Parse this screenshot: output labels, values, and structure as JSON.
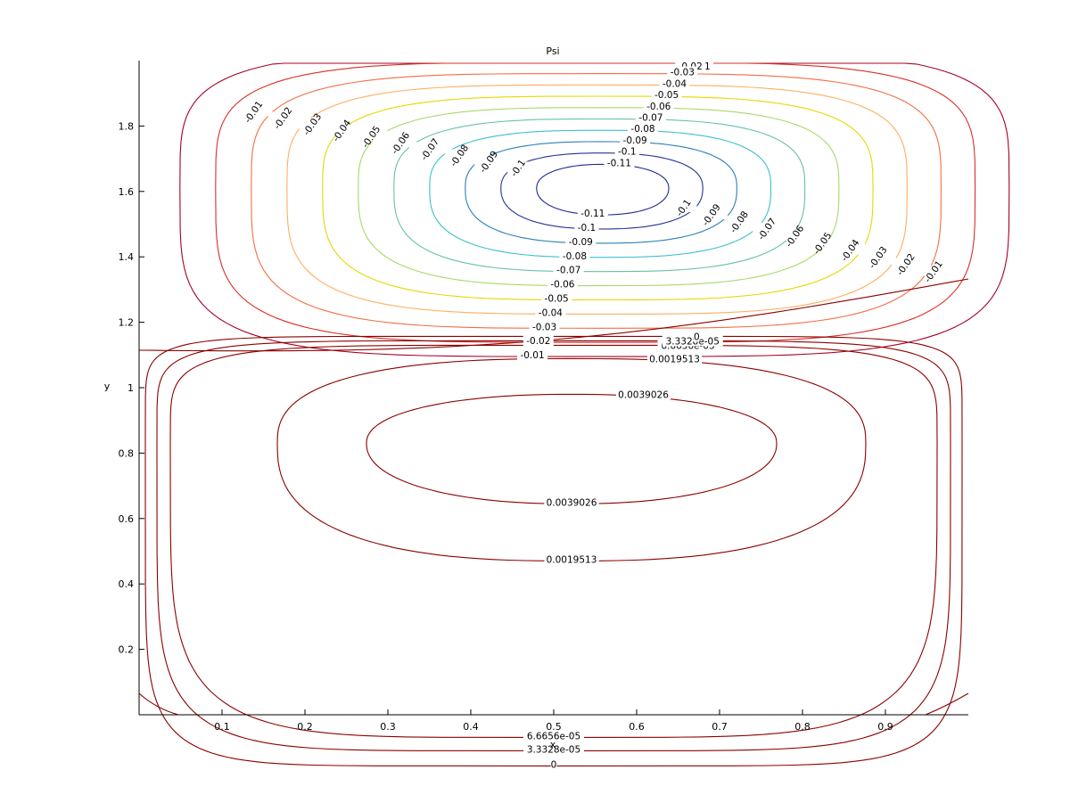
{
  "chart_data": {
    "type": "contour",
    "title": "Psi",
    "xlabel": "x",
    "ylabel": "y",
    "xlim": [
      0.0,
      1.0
    ],
    "ylim": [
      0.0,
      2.0
    ],
    "x_ticks": [
      "0.1",
      "0.2",
      "0.3",
      "0.4",
      "0.5",
      "0.6",
      "0.7",
      "0.8",
      "0.9"
    ],
    "y_ticks": [
      "0.2",
      "0.4",
      "0.6",
      "0.8",
      "1",
      "1.2",
      "1.4",
      "1.6",
      "1.8"
    ],
    "grid": false,
    "colormap": "jet",
    "upper_vortex": {
      "center": [
        0.56,
        1.61
      ],
      "levels": [
        -0.01,
        -0.02,
        -0.03,
        -0.04,
        -0.05,
        -0.06,
        -0.07,
        -0.08,
        -0.09,
        -0.1,
        -0.11
      ],
      "level_labels": [
        "-0.01",
        "-0.02",
        "-0.03",
        "-0.04",
        "-0.05",
        "-0.06",
        "-0.07",
        "-0.08",
        "-0.09",
        "-0.1",
        "-0.11"
      ],
      "level_colors": [
        "#a50026",
        "#d73027",
        "#f46d43",
        "#fdae61",
        "#e6d800",
        "#a6d96a",
        "#66c2a5",
        "#3bbfcf",
        "#2c7fb8",
        "#253494",
        "#1d2a8f"
      ]
    },
    "lower_vortex": {
      "center": [
        0.5,
        0.83
      ],
      "levels": [
        0.0039026,
        0.0019513,
        6.6656e-05,
        3.3328e-05,
        0
      ],
      "level_labels": [
        "0.0039026",
        "0.0019513",
        "6.6656e-05",
        "3.3328e-05",
        "0"
      ],
      "color": "#8b0000"
    }
  }
}
